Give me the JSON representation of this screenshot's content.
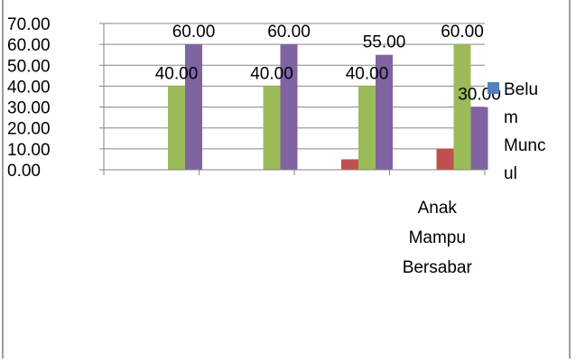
{
  "chart_data": {
    "type": "bar",
    "title": "",
    "xlabel": "",
    "ylabel": "",
    "ylim": [
      0,
      70
    ],
    "yticks": [
      0,
      10,
      20,
      30,
      40,
      50,
      60,
      70
    ],
    "ytick_labels": [
      "0.00",
      "10.00",
      "20.00",
      "30.00",
      "40.00",
      "50.00",
      "60.00",
      "70.00"
    ],
    "grid": true,
    "categories": [
      "",
      "",
      "",
      "Anak Mampu Bersabar"
    ],
    "category_label_lines": [
      [],
      [],
      [],
      [
        "Anak",
        "Mampu",
        "Bersabar"
      ]
    ],
    "series": [
      {
        "values": [
          0,
          0,
          5,
          10
        ],
        "color": "#c0504d"
      },
      {
        "values": [
          40,
          40,
          40,
          60
        ],
        "color": "#9bbb59"
      },
      {
        "values": [
          60,
          60,
          55,
          30
        ],
        "color": "#8064a2"
      }
    ],
    "data_labels": [
      {
        "category": 0,
        "series": 1,
        "text": "40.00"
      },
      {
        "category": 0,
        "series": 2,
        "text": "60.00"
      },
      {
        "category": 1,
        "series": 1,
        "text": "40.00"
      },
      {
        "category": 1,
        "series": 2,
        "text": "60.00"
      },
      {
        "category": 2,
        "series": 1,
        "text": "40.00"
      },
      {
        "category": 2,
        "series": 2,
        "text": "55.00"
      },
      {
        "category": 3,
        "series": 1,
        "text": "60.00"
      },
      {
        "category": 3,
        "series": 2,
        "text": "30.00"
      }
    ],
    "legend": {
      "placement": "right",
      "entries": [
        {
          "label_lines": [
            "Belu",
            "m",
            "Munc",
            "ul"
          ],
          "color": "#4f81bd"
        }
      ]
    }
  }
}
